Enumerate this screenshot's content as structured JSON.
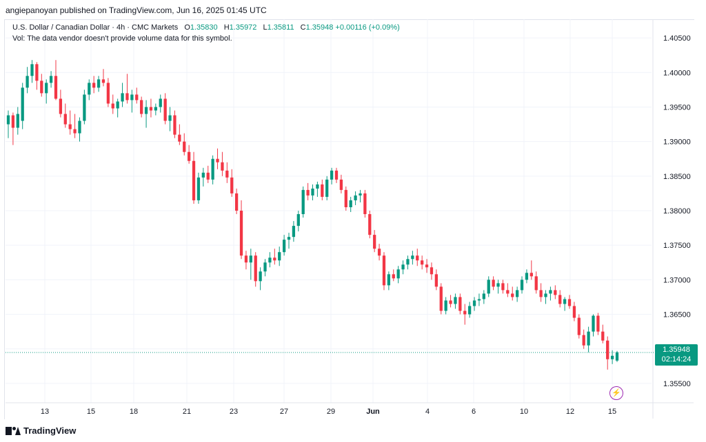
{
  "header": {
    "published": "angiepanoyan published on TradingView.com, Jun 16, 2025 01:45 UTC"
  },
  "legend": {
    "symbol": "U.S. Dollar / Canadian Dollar · 4h · CMC Markets",
    "open_label": "O",
    "open": "1.35830",
    "high_label": "H",
    "high": "1.35972",
    "low_label": "L",
    "low": "1.35811",
    "close_label": "C",
    "close": "1.35948",
    "change": "+0.00116 (+0.09%)",
    "vol_note": "Vol: The data vendor doesn't provide volume data for this symbol."
  },
  "price_tag": {
    "price": "1.35948",
    "countdown": "02:14:24"
  },
  "footer": {
    "brand": "TradingView"
  },
  "colors": {
    "up": "#089981",
    "down": "#f23645",
    "grid": "#f0f3fa",
    "text": "#131722"
  },
  "icons": {
    "alert": "bolt-icon"
  },
  "chart_data": {
    "type": "candlestick",
    "title": "U.S. Dollar / Canadian Dollar · 4h · CMC Markets",
    "ylim": [
      1.3522,
      1.4077
    ],
    "y_ticks": [
      "1.40500",
      "1.40000",
      "1.39500",
      "1.39000",
      "1.38500",
      "1.38000",
      "1.37500",
      "1.37000",
      "1.36500",
      "1.36000",
      "1.35500"
    ],
    "x_ticks": [
      "13",
      "15",
      "18",
      "21",
      "23",
      "27",
      "29",
      "Jun",
      "4",
      "6",
      "10",
      "12",
      "15"
    ],
    "last_price": 1.35948,
    "candles": [
      {
        "o": 1.3925,
        "h": 1.3945,
        "l": 1.3905,
        "c": 1.3938
      },
      {
        "o": 1.3938,
        "h": 1.3942,
        "l": 1.3895,
        "c": 1.392
      },
      {
        "o": 1.392,
        "h": 1.395,
        "l": 1.391,
        "c": 1.394
      },
      {
        "o": 1.393,
        "h": 1.3985,
        "l": 1.3918,
        "c": 1.3978
      },
      {
        "o": 1.3978,
        "h": 1.4008,
        "l": 1.397,
        "c": 1.3995
      },
      {
        "o": 1.3995,
        "h": 1.4018,
        "l": 1.3985,
        "c": 1.4012
      },
      {
        "o": 1.4012,
        "h": 1.4015,
        "l": 1.3975,
        "c": 1.3988
      },
      {
        "o": 1.3988,
        "h": 1.3998,
        "l": 1.3965,
        "c": 1.397
      },
      {
        "o": 1.397,
        "h": 1.399,
        "l": 1.3955,
        "c": 1.3985
      },
      {
        "o": 1.3985,
        "h": 1.4002,
        "l": 1.3978,
        "c": 1.3995
      },
      {
        "o": 1.3995,
        "h": 1.4018,
        "l": 1.396,
        "c": 1.3962
      },
      {
        "o": 1.3962,
        "h": 1.3975,
        "l": 1.3935,
        "c": 1.394
      },
      {
        "o": 1.394,
        "h": 1.3955,
        "l": 1.392,
        "c": 1.3925
      },
      {
        "o": 1.3925,
        "h": 1.3945,
        "l": 1.391,
        "c": 1.3918
      },
      {
        "o": 1.3918,
        "h": 1.394,
        "l": 1.3905,
        "c": 1.3912
      },
      {
        "o": 1.3912,
        "h": 1.3935,
        "l": 1.39,
        "c": 1.393
      },
      {
        "o": 1.393,
        "h": 1.3975,
        "l": 1.3925,
        "c": 1.3968
      },
      {
        "o": 1.3968,
        "h": 1.399,
        "l": 1.396,
        "c": 1.3985
      },
      {
        "o": 1.3985,
        "h": 1.3995,
        "l": 1.397,
        "c": 1.3978
      },
      {
        "o": 1.3978,
        "h": 1.3995,
        "l": 1.3972,
        "c": 1.399
      },
      {
        "o": 1.399,
        "h": 1.4005,
        "l": 1.398,
        "c": 1.3985
      },
      {
        "o": 1.3985,
        "h": 1.3992,
        "l": 1.395,
        "c": 1.3955
      },
      {
        "o": 1.3955,
        "h": 1.3968,
        "l": 1.394,
        "c": 1.3948
      },
      {
        "o": 1.3948,
        "h": 1.3962,
        "l": 1.3935,
        "c": 1.3958
      },
      {
        "o": 1.3958,
        "h": 1.3985,
        "l": 1.395,
        "c": 1.397
      },
      {
        "o": 1.397,
        "h": 1.3998,
        "l": 1.3955,
        "c": 1.396
      },
      {
        "o": 1.396,
        "h": 1.3975,
        "l": 1.3942,
        "c": 1.3968
      },
      {
        "o": 1.3968,
        "h": 1.3978,
        "l": 1.3955,
        "c": 1.396
      },
      {
        "o": 1.396,
        "h": 1.3965,
        "l": 1.3935,
        "c": 1.394
      },
      {
        "o": 1.394,
        "h": 1.396,
        "l": 1.392,
        "c": 1.395
      },
      {
        "o": 1.395,
        "h": 1.3962,
        "l": 1.3935,
        "c": 1.3945
      },
      {
        "o": 1.3945,
        "h": 1.3955,
        "l": 1.3938,
        "c": 1.395
      },
      {
        "o": 1.395,
        "h": 1.3968,
        "l": 1.3942,
        "c": 1.3962
      },
      {
        "o": 1.3962,
        "h": 1.397,
        "l": 1.3925,
        "c": 1.393
      },
      {
        "o": 1.393,
        "h": 1.395,
        "l": 1.3915,
        "c": 1.3938
      },
      {
        "o": 1.3938,
        "h": 1.3945,
        "l": 1.3905,
        "c": 1.391
      },
      {
        "o": 1.391,
        "h": 1.3925,
        "l": 1.3895,
        "c": 1.39
      },
      {
        "o": 1.39,
        "h": 1.3912,
        "l": 1.388,
        "c": 1.3885
      },
      {
        "o": 1.3885,
        "h": 1.3895,
        "l": 1.3868,
        "c": 1.3872
      },
      {
        "o": 1.3872,
        "h": 1.3885,
        "l": 1.381,
        "c": 1.3815
      },
      {
        "o": 1.3815,
        "h": 1.3855,
        "l": 1.381,
        "c": 1.3848
      },
      {
        "o": 1.3848,
        "h": 1.3862,
        "l": 1.3835,
        "c": 1.3855
      },
      {
        "o": 1.3855,
        "h": 1.3865,
        "l": 1.384,
        "c": 1.3845
      },
      {
        "o": 1.3845,
        "h": 1.388,
        "l": 1.3838,
        "c": 1.3875
      },
      {
        "o": 1.3875,
        "h": 1.389,
        "l": 1.386,
        "c": 1.387
      },
      {
        "o": 1.387,
        "h": 1.3885,
        "l": 1.385,
        "c": 1.3858
      },
      {
        "o": 1.3858,
        "h": 1.387,
        "l": 1.384,
        "c": 1.3848
      },
      {
        "o": 1.3848,
        "h": 1.386,
        "l": 1.382,
        "c": 1.3825
      },
      {
        "o": 1.3825,
        "h": 1.3832,
        "l": 1.3795,
        "c": 1.38
      },
      {
        "o": 1.38,
        "h": 1.3815,
        "l": 1.373,
        "c": 1.3735
      },
      {
        "o": 1.3735,
        "h": 1.3742,
        "l": 1.3715,
        "c": 1.3725
      },
      {
        "o": 1.3725,
        "h": 1.3745,
        "l": 1.37,
        "c": 1.3735
      },
      {
        "o": 1.3735,
        "h": 1.374,
        "l": 1.369,
        "c": 1.3698
      },
      {
        "o": 1.3698,
        "h": 1.3718,
        "l": 1.3685,
        "c": 1.3712
      },
      {
        "o": 1.3712,
        "h": 1.373,
        "l": 1.3705,
        "c": 1.3725
      },
      {
        "o": 1.3725,
        "h": 1.374,
        "l": 1.3718,
        "c": 1.3732
      },
      {
        "o": 1.3732,
        "h": 1.3745,
        "l": 1.3722,
        "c": 1.3728
      },
      {
        "o": 1.3728,
        "h": 1.3748,
        "l": 1.372,
        "c": 1.374
      },
      {
        "o": 1.374,
        "h": 1.3765,
        "l": 1.3735,
        "c": 1.3758
      },
      {
        "o": 1.3758,
        "h": 1.3768,
        "l": 1.3745,
        "c": 1.3762
      },
      {
        "o": 1.3762,
        "h": 1.3785,
        "l": 1.3755,
        "c": 1.3778
      },
      {
        "o": 1.3778,
        "h": 1.38,
        "l": 1.377,
        "c": 1.3795
      },
      {
        "o": 1.3795,
        "h": 1.3835,
        "l": 1.379,
        "c": 1.383
      },
      {
        "o": 1.383,
        "h": 1.384,
        "l": 1.3815,
        "c": 1.3822
      },
      {
        "o": 1.3822,
        "h": 1.3838,
        "l": 1.3815,
        "c": 1.3832
      },
      {
        "o": 1.3832,
        "h": 1.3842,
        "l": 1.382,
        "c": 1.3838
      },
      {
        "o": 1.3838,
        "h": 1.3845,
        "l": 1.3815,
        "c": 1.382
      },
      {
        "o": 1.382,
        "h": 1.385,
        "l": 1.3815,
        "c": 1.3845
      },
      {
        "o": 1.3845,
        "h": 1.3862,
        "l": 1.3838,
        "c": 1.3858
      },
      {
        "o": 1.3858,
        "h": 1.3862,
        "l": 1.384,
        "c": 1.3845
      },
      {
        "o": 1.3845,
        "h": 1.3852,
        "l": 1.3825,
        "c": 1.383
      },
      {
        "o": 1.383,
        "h": 1.3835,
        "l": 1.38,
        "c": 1.3805
      },
      {
        "o": 1.3805,
        "h": 1.382,
        "l": 1.3798,
        "c": 1.3815
      },
      {
        "o": 1.3815,
        "h": 1.3828,
        "l": 1.3808,
        "c": 1.3822
      },
      {
        "o": 1.3822,
        "h": 1.383,
        "l": 1.3812,
        "c": 1.3825
      },
      {
        "o": 1.3825,
        "h": 1.383,
        "l": 1.379,
        "c": 1.3795
      },
      {
        "o": 1.3795,
        "h": 1.38,
        "l": 1.376,
        "c": 1.3765
      },
      {
        "o": 1.3765,
        "h": 1.3772,
        "l": 1.374,
        "c": 1.3745
      },
      {
        "o": 1.3745,
        "h": 1.3752,
        "l": 1.3728,
        "c": 1.3735
      },
      {
        "o": 1.3735,
        "h": 1.374,
        "l": 1.3685,
        "c": 1.3692
      },
      {
        "o": 1.3692,
        "h": 1.3712,
        "l": 1.3685,
        "c": 1.3708
      },
      {
        "o": 1.3708,
        "h": 1.3715,
        "l": 1.3698,
        "c": 1.3702
      },
      {
        "o": 1.3702,
        "h": 1.372,
        "l": 1.3695,
        "c": 1.3715
      },
      {
        "o": 1.3715,
        "h": 1.3728,
        "l": 1.3708,
        "c": 1.3722
      },
      {
        "o": 1.3722,
        "h": 1.3735,
        "l": 1.3715,
        "c": 1.373
      },
      {
        "o": 1.373,
        "h": 1.3742,
        "l": 1.3722,
        "c": 1.3735
      },
      {
        "o": 1.3735,
        "h": 1.3745,
        "l": 1.372,
        "c": 1.3728
      },
      {
        "o": 1.3728,
        "h": 1.3735,
        "l": 1.3715,
        "c": 1.3722
      },
      {
        "o": 1.3722,
        "h": 1.373,
        "l": 1.371,
        "c": 1.3718
      },
      {
        "o": 1.3718,
        "h": 1.3725,
        "l": 1.37,
        "c": 1.3708
      },
      {
        "o": 1.3708,
        "h": 1.3715,
        "l": 1.3685,
        "c": 1.369
      },
      {
        "o": 1.369,
        "h": 1.3695,
        "l": 1.365,
        "c": 1.3655
      },
      {
        "o": 1.3655,
        "h": 1.3675,
        "l": 1.365,
        "c": 1.367
      },
      {
        "o": 1.367,
        "h": 1.3678,
        "l": 1.366,
        "c": 1.3665
      },
      {
        "o": 1.3665,
        "h": 1.368,
        "l": 1.3658,
        "c": 1.3675
      },
      {
        "o": 1.3675,
        "h": 1.368,
        "l": 1.365,
        "c": 1.3655
      },
      {
        "o": 1.3655,
        "h": 1.3665,
        "l": 1.3635,
        "c": 1.365
      },
      {
        "o": 1.365,
        "h": 1.3668,
        "l": 1.3645,
        "c": 1.3662
      },
      {
        "o": 1.3662,
        "h": 1.3675,
        "l": 1.3655,
        "c": 1.367
      },
      {
        "o": 1.367,
        "h": 1.368,
        "l": 1.3662,
        "c": 1.3672
      },
      {
        "o": 1.3672,
        "h": 1.3685,
        "l": 1.3665,
        "c": 1.368
      },
      {
        "o": 1.368,
        "h": 1.3705,
        "l": 1.3675,
        "c": 1.37
      },
      {
        "o": 1.37,
        "h": 1.3705,
        "l": 1.3685,
        "c": 1.369
      },
      {
        "o": 1.369,
        "h": 1.37,
        "l": 1.368,
        "c": 1.3695
      },
      {
        "o": 1.3695,
        "h": 1.37,
        "l": 1.368,
        "c": 1.3685
      },
      {
        "o": 1.3685,
        "h": 1.3695,
        "l": 1.3675,
        "c": 1.368
      },
      {
        "o": 1.368,
        "h": 1.369,
        "l": 1.367,
        "c": 1.3675
      },
      {
        "o": 1.3675,
        "h": 1.369,
        "l": 1.3668,
        "c": 1.3685
      },
      {
        "o": 1.3685,
        "h": 1.3705,
        "l": 1.368,
        "c": 1.37
      },
      {
        "o": 1.37,
        "h": 1.3715,
        "l": 1.3695,
        "c": 1.371
      },
      {
        "o": 1.371,
        "h": 1.3728,
        "l": 1.37,
        "c": 1.3705
      },
      {
        "o": 1.3705,
        "h": 1.3712,
        "l": 1.368,
        "c": 1.3685
      },
      {
        "o": 1.3685,
        "h": 1.3695,
        "l": 1.3668,
        "c": 1.3675
      },
      {
        "o": 1.3675,
        "h": 1.3685,
        "l": 1.3665,
        "c": 1.368
      },
      {
        "o": 1.368,
        "h": 1.369,
        "l": 1.367,
        "c": 1.3685
      },
      {
        "o": 1.3685,
        "h": 1.3692,
        "l": 1.3672,
        "c": 1.3678
      },
      {
        "o": 1.3678,
        "h": 1.3685,
        "l": 1.366,
        "c": 1.3665
      },
      {
        "o": 1.3665,
        "h": 1.3675,
        "l": 1.3655,
        "c": 1.3672
      },
      {
        "o": 1.3672,
        "h": 1.3678,
        "l": 1.3658,
        "c": 1.3662
      },
      {
        "o": 1.3662,
        "h": 1.3668,
        "l": 1.364,
        "c": 1.3645
      },
      {
        "o": 1.3645,
        "h": 1.365,
        "l": 1.3615,
        "c": 1.362
      },
      {
        "o": 1.362,
        "h": 1.3628,
        "l": 1.36,
        "c": 1.3605
      },
      {
        "o": 1.3605,
        "h": 1.3632,
        "l": 1.3595,
        "c": 1.3625
      },
      {
        "o": 1.3625,
        "h": 1.365,
        "l": 1.3618,
        "c": 1.3648
      },
      {
        "o": 1.3648,
        "h": 1.3652,
        "l": 1.362,
        "c": 1.3625
      },
      {
        "o": 1.3625,
        "h": 1.3635,
        "l": 1.3608,
        "c": 1.3612
      },
      {
        "o": 1.3612,
        "h": 1.3618,
        "l": 1.357,
        "c": 1.3585
      },
      {
        "o": 1.3585,
        "h": 1.3598,
        "l": 1.3578,
        "c": 1.359
      },
      {
        "o": 1.3583,
        "h": 1.3597,
        "l": 1.3581,
        "c": 1.3595
      }
    ]
  }
}
